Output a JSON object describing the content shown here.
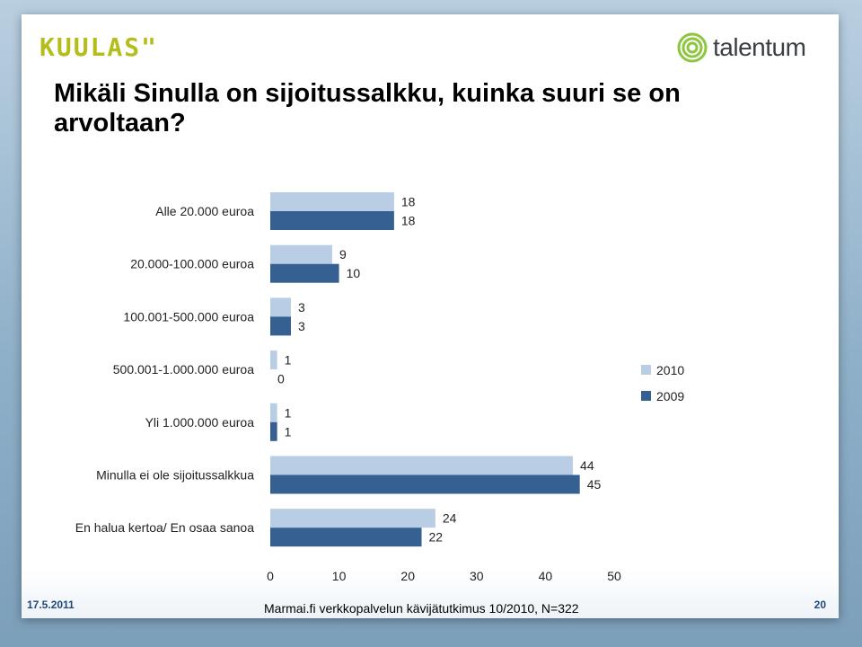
{
  "header": {
    "brand_left": "KUULAS\"",
    "brand_right": "talentum",
    "title": "Mikäli Sinulla on sijoitussalkku, kuinka suuri se on arvoltaan?"
  },
  "footer": {
    "date": "17.5.2011",
    "source": "Marmai.fi verkkopalvelun kävijätutkimus 10/2010, N=322",
    "page": "20"
  },
  "colors": {
    "series_2010": "#b9cde5",
    "series_2009": "#376092",
    "brand_green": "#b5bd1c",
    "footer_blue": "#1f497d"
  },
  "icons": {
    "brand_logo": "talentum-rings-icon"
  },
  "chart_data": {
    "type": "bar",
    "orientation": "horizontal",
    "categories": [
      "Alle 20.000 euroa",
      "20.000-100.000 euroa",
      "100.001-500.000 euroa",
      "500.001-1.000.000 euroa",
      "Yli 1.000.000 euroa",
      "Minulla ei ole sijoitussalkkua",
      "En halua kertoa/ En osaa sanoa"
    ],
    "series": [
      {
        "name": "2010",
        "values": [
          18,
          9,
          3,
          1,
          1,
          44,
          24
        ]
      },
      {
        "name": "2009",
        "values": [
          18,
          10,
          3,
          0,
          1,
          45,
          22
        ]
      }
    ],
    "xlim": [
      0,
      50
    ],
    "xticks": [
      "0",
      "10",
      "20",
      "30",
      "40",
      "50"
    ],
    "legend": "right",
    "grid": false
  }
}
